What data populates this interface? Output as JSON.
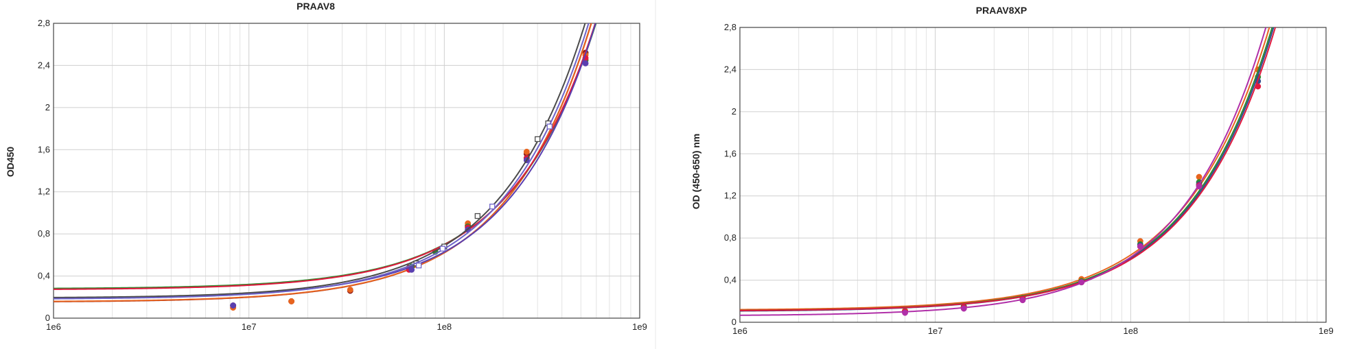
{
  "chart_data": [
    {
      "type": "line",
      "title": "PRAAV8",
      "xlabel": "",
      "ylabel": "OD450",
      "x_scale": "log",
      "xlim": [
        1000000,
        1000000000
      ],
      "ylim": [
        0,
        2.8
      ],
      "x_tick_labels": [
        "1e6",
        "1e7",
        "1e8",
        "1e9"
      ],
      "y_tick_labels": [
        "0",
        "0,4",
        "0,8",
        "1,2",
        "1,6",
        "2",
        "2,4",
        "2,8"
      ],
      "grid": true,
      "series": [
        {
          "color": "#8b1a1a",
          "marker": "circle",
          "points": [
            [
              8300000,
              0.12
            ],
            [
              16500000,
              0.16
            ],
            [
              33000000,
              0.26
            ],
            [
              66000000,
              0.48
            ],
            [
              132000000,
              0.88
            ],
            [
              264000000,
              1.56
            ],
            [
              528000000,
              2.52
            ]
          ]
        },
        {
          "color": "#e8641e",
          "marker": "circle",
          "points": [
            [
              8300000,
              0.1
            ],
            [
              16500000,
              0.16
            ],
            [
              33000000,
              0.27
            ],
            [
              66000000,
              0.47
            ],
            [
              132000000,
              0.9
            ],
            [
              264000000,
              1.58
            ],
            [
              528000000,
              2.5
            ]
          ]
        },
        {
          "color": "#2e8b2e",
          "marker": "circle",
          "points": [
            [
              68000000,
              0.49
            ],
            [
              90000000,
              0.63
            ],
            [
              132000000,
              0.87
            ],
            [
              264000000,
              1.52
            ],
            [
              528000000,
              2.45
            ]
          ]
        },
        {
          "color": "#e0193e",
          "marker": "circle",
          "points": [
            [
              66000000,
              0.46
            ],
            [
              132000000,
              0.86
            ],
            [
              264000000,
              1.52
            ],
            [
              528000000,
              2.47
            ]
          ]
        },
        {
          "color": "#5a3fb0",
          "marker": "circle",
          "points": [
            [
              8300000,
              0.12
            ],
            [
              68000000,
              0.46
            ],
            [
              132000000,
              0.84
            ],
            [
              264000000,
              1.5
            ],
            [
              528000000,
              2.42
            ]
          ]
        },
        {
          "color": "#4a4a4a",
          "marker": "square-open",
          "points": [
            [
              72000000,
              0.52
            ],
            [
              100000000,
              0.68
            ],
            [
              148000000,
              0.97
            ],
            [
              300000000,
              1.7
            ],
            [
              340000000,
              1.85
            ]
          ]
        },
        {
          "color": "#6d62c8",
          "marker": "square-open",
          "points": [
            [
              74000000,
              0.5
            ],
            [
              98000000,
              0.66
            ],
            [
              176000000,
              1.06
            ],
            [
              346000000,
              1.82
            ]
          ]
        }
      ]
    },
    {
      "type": "line",
      "title": "PRAAV8XP",
      "xlabel": "",
      "ylabel": "OD (450-650) nm",
      "x_scale": "log",
      "xlim": [
        1000000,
        1000000000
      ],
      "ylim": [
        0,
        2.8
      ],
      "x_tick_labels": [
        "1e6",
        "1e7",
        "1e8",
        "1e9"
      ],
      "y_tick_labels": [
        "0",
        "0,4",
        "0,8",
        "1,2",
        "1,6",
        "2",
        "2,4",
        "2,8"
      ],
      "grid": true,
      "series": [
        {
          "color": "#e8641e",
          "marker": "circle",
          "points": [
            [
              7000000,
              0.11
            ],
            [
              14000000,
              0.15
            ],
            [
              28000000,
              0.24
            ],
            [
              56000000,
              0.41
            ],
            [
              112000000,
              0.77
            ],
            [
              224000000,
              1.38
            ],
            [
              448000000,
              2.4
            ]
          ]
        },
        {
          "color": "#2e8b2e",
          "marker": "circle",
          "points": [
            [
              7000000,
              0.1
            ],
            [
              14000000,
              0.15
            ],
            [
              28000000,
              0.23
            ],
            [
              56000000,
              0.39
            ],
            [
              112000000,
              0.74
            ],
            [
              224000000,
              1.33
            ],
            [
              448000000,
              2.33
            ]
          ]
        },
        {
          "color": "#2e4f8f",
          "marker": "circle",
          "points": [
            [
              7000000,
              0.1
            ],
            [
              14000000,
              0.14
            ],
            [
              28000000,
              0.22
            ],
            [
              56000000,
              0.38
            ],
            [
              112000000,
              0.73
            ],
            [
              224000000,
              1.31
            ],
            [
              448000000,
              2.29
            ]
          ]
        },
        {
          "color": "#e0193e",
          "marker": "circle",
          "points": [
            [
              7000000,
              0.1
            ],
            [
              14000000,
              0.14
            ],
            [
              28000000,
              0.22
            ],
            [
              56000000,
              0.38
            ],
            [
              112000000,
              0.72
            ],
            [
              224000000,
              1.3
            ],
            [
              448000000,
              2.24
            ]
          ]
        },
        {
          "color": "#b02fa8",
          "marker": "circle",
          "points": [
            [
              7000000,
              0.09
            ],
            [
              14000000,
              0.13
            ],
            [
              28000000,
              0.21
            ],
            [
              56000000,
              0.38
            ],
            [
              112000000,
              0.72
            ],
            [
              224000000,
              1.29
            ]
          ]
        }
      ]
    }
  ]
}
